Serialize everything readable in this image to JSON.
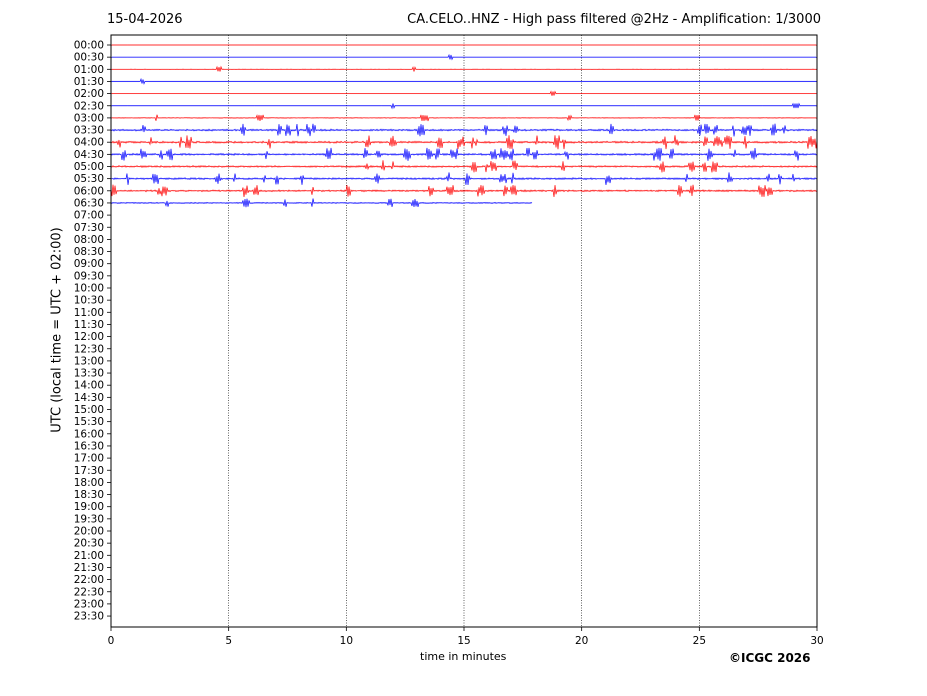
{
  "header": {
    "date": "15-04-2026",
    "title": "CA.CELO..HNZ - High pass filtered @2Hz - Amplification: 1/3000"
  },
  "footer": {
    "credit": "©ICGC 2026"
  },
  "chart_data": {
    "type": "line",
    "title": "CA.CELO..HNZ - High pass filtered @2Hz - Amplification: 1/3000",
    "xlabel": "time in minutes",
    "ylabel": "UTC (local time = UTC + 02:00)",
    "xlim": [
      0,
      30
    ],
    "xticks": [
      0,
      5,
      10,
      15,
      20,
      25,
      30
    ],
    "grid_x": true,
    "row_colors": [
      "#ff0000",
      "#0000ff"
    ],
    "rows": [
      "00:00",
      "00:30",
      "01:00",
      "01:30",
      "02:00",
      "02:30",
      "03:00",
      "03:30",
      "04:00",
      "04:30",
      "05:00",
      "05:30",
      "06:00",
      "06:30",
      "07:00",
      "07:30",
      "08:00",
      "08:30",
      "09:00",
      "09:30",
      "10:00",
      "10:30",
      "11:00",
      "11:30",
      "12:00",
      "12:30",
      "13:00",
      "13:30",
      "14:00",
      "14:30",
      "15:00",
      "15:30",
      "16:00",
      "16:30",
      "17:00",
      "17:30",
      "18:00",
      "18:30",
      "19:00",
      "19:30",
      "20:00",
      "20:30",
      "21:00",
      "21:30",
      "22:00",
      "22:30",
      "23:00",
      "23:30"
    ],
    "traces": [
      {
        "row": "00:00",
        "end_min": 30,
        "activity": 0.05
      },
      {
        "row": "00:30",
        "end_min": 30,
        "activity": 0.05
      },
      {
        "row": "01:00",
        "end_min": 30,
        "activity": 0.08
      },
      {
        "row": "01:30",
        "end_min": 30,
        "activity": 0.08
      },
      {
        "row": "02:00",
        "end_min": 30,
        "activity": 0.05
      },
      {
        "row": "02:30",
        "end_min": 30,
        "activity": 0.08
      },
      {
        "row": "03:00",
        "end_min": 30,
        "activity": 0.25
      },
      {
        "row": "03:30",
        "end_min": 30,
        "activity": 0.9
      },
      {
        "row": "04:00",
        "end_min": 30,
        "activity": 1.0
      },
      {
        "row": "04:30",
        "end_min": 30,
        "activity": 0.9
      },
      {
        "row": "05:00",
        "end_min": 30,
        "activity": 0.85
      },
      {
        "row": "05:30",
        "end_min": 30,
        "activity": 0.9
      },
      {
        "row": "06:00",
        "end_min": 30,
        "activity": 0.85
      },
      {
        "row": "06:30",
        "end_min": 17.9,
        "activity": 0.5
      }
    ]
  }
}
